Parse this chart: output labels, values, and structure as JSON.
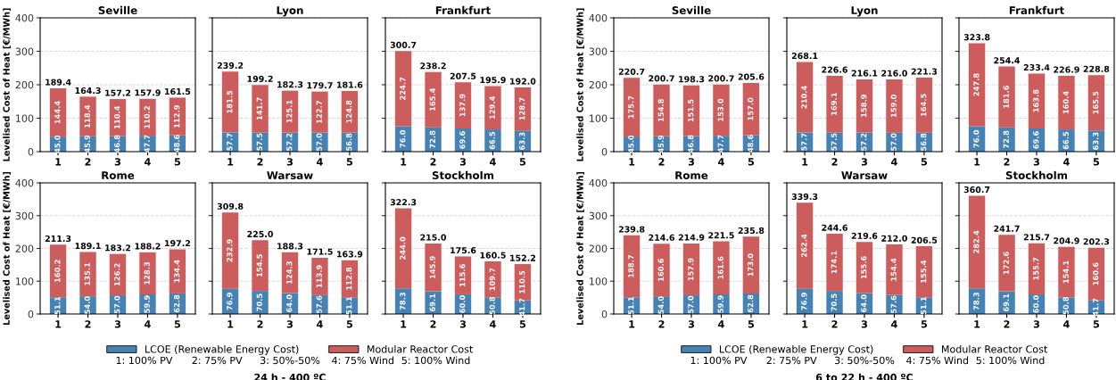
{
  "chart_data": [
    {
      "type": "bar",
      "title": "Seville",
      "ylabel": "Levelised Cost of Heat [€/MWh]",
      "categories": [
        "1",
        "2",
        "3",
        "4",
        "5"
      ],
      "stacked": true,
      "ylim": [
        0,
        400
      ],
      "yticks": [
        0,
        100,
        200,
        300,
        400
      ],
      "grid": "y",
      "series": [
        {
          "color": "#4682b4",
          "values": [
            45.0,
            45.9,
            46.8,
            47.7,
            48.6
          ],
          "value_labels": [
            "45.0",
            "45.9",
            "46.8",
            "47.7",
            "48.6"
          ]
        },
        {
          "color": "#cd5c5c",
          "values": [
            144.4,
            118.4,
            110.4,
            110.2,
            112.9
          ],
          "value_labels": [
            "144.4",
            "118.4",
            "110.4",
            "110.2",
            "112.9"
          ]
        }
      ],
      "totals": [
        "189.4",
        "164.3",
        "157.2",
        "157.9",
        "161.5"
      ]
    },
    {
      "type": "bar",
      "title": "Lyon",
      "categories": [
        "1",
        "2",
        "3",
        "4",
        "5"
      ],
      "stacked": true,
      "ylim": [
        0,
        400
      ],
      "yticks": [
        0,
        100,
        200,
        300,
        400
      ],
      "grid": "y",
      "tick_labels": "x",
      "series": [
        {
          "color": "#4682b4",
          "values": [
            57.7,
            57.5,
            57.2,
            57.0,
            56.8
          ],
          "value_labels": [
            "57.7",
            "57.5",
            "57.2",
            "57.0",
            "56.8"
          ]
        },
        {
          "color": "#cd5c5c",
          "values": [
            181.5,
            141.7,
            125.1,
            122.7,
            124.8
          ],
          "value_labels": [
            "181.5",
            "141.7",
            "125.1",
            "122.7",
            "124.8"
          ]
        }
      ],
      "totals": [
        "239.2",
        "199.2",
        "182.3",
        "179.7",
        "181.6"
      ]
    },
    {
      "type": "bar",
      "title": "Frankfurt",
      "categories": [
        "1",
        "2",
        "3",
        "4",
        "5"
      ],
      "stacked": true,
      "ylim": [
        0,
        400
      ],
      "yticks": [
        0,
        100,
        200,
        300,
        400
      ],
      "grid": "y",
      "tick_labels": "x",
      "series": [
        {
          "color": "#4682b4",
          "values": [
            76.0,
            72.8,
            69.6,
            66.5,
            63.3
          ],
          "value_labels": [
            "76.0",
            "72.8",
            "69.6",
            "66.5",
            "63.3"
          ]
        },
        {
          "color": "#cd5c5c",
          "values": [
            224.7,
            165.4,
            137.9,
            129.4,
            128.7
          ],
          "value_labels": [
            "224.7",
            "165.4",
            "137.9",
            "129.4",
            "128.7"
          ]
        }
      ],
      "totals": [
        "300.7",
        "238.2",
        "207.5",
        "195.9",
        "192.0"
      ]
    },
    {
      "type": "bar",
      "title": "Rome",
      "ylabel": "Levelised Cost of Heat [€/MWh]",
      "categories": [
        "1",
        "2",
        "3",
        "4",
        "5"
      ],
      "stacked": true,
      "ylim": [
        0,
        400
      ],
      "yticks": [
        0,
        100,
        200,
        300,
        400
      ],
      "grid": "y",
      "series": [
        {
          "color": "#4682b4",
          "values": [
            51.1,
            54.0,
            57.0,
            59.9,
            62.8
          ],
          "value_labels": [
            "51.1",
            "54.0",
            "57.0",
            "59.9",
            "62.8"
          ]
        },
        {
          "color": "#cd5c5c",
          "values": [
            160.2,
            135.1,
            126.2,
            128.3,
            134.4
          ],
          "value_labels": [
            "160.2",
            "135.1",
            "126.2",
            "128.3",
            "134.4"
          ]
        }
      ],
      "totals": [
        "211.3",
        "189.1",
        "183.2",
        "188.2",
        "197.2"
      ]
    },
    {
      "type": "bar",
      "title": "Warsaw",
      "categories": [
        "1",
        "2",
        "3",
        "4",
        "5"
      ],
      "stacked": true,
      "ylim": [
        0,
        400
      ],
      "yticks": [
        0,
        100,
        200,
        300,
        400
      ],
      "grid": "y",
      "tick_labels": "x",
      "legend": "bottom",
      "series": [
        {
          "name": "LCOE (Renewable Energy Cost)",
          "color": "#4682b4",
          "values": [
            76.9,
            70.5,
            64.0,
            57.6,
            51.1
          ],
          "value_labels": [
            "76.9",
            "70.5",
            "64.0",
            "57.6",
            "51.1"
          ]
        },
        {
          "name": "Modular Reactor Cost",
          "color": "#cd5c5c",
          "values": [
            232.9,
            154.5,
            124.3,
            113.9,
            112.8
          ],
          "value_labels": [
            "232.9",
            "154.5",
            "124.3",
            "113.9",
            "112.8"
          ]
        }
      ],
      "totals": [
        "309.8",
        "225.0",
        "188.3",
        "171.5",
        "163.9"
      ],
      "annotations": [
        "1: 100% PV",
        "2: 75% PV",
        "3: 50%-50%",
        "4: 75% Wind",
        "5: 100% Wind",
        "24 h - 400 ºC"
      ]
    },
    {
      "type": "bar",
      "title": "Stockholm",
      "categories": [
        "1",
        "2",
        "3",
        "4",
        "5"
      ],
      "stacked": true,
      "ylim": [
        0,
        400
      ],
      "yticks": [
        0,
        100,
        200,
        300,
        400
      ],
      "grid": "y",
      "tick_labels": "x",
      "series": [
        {
          "color": "#4682b4",
          "values": [
            78.3,
            69.1,
            60.0,
            50.8,
            41.7
          ],
          "value_labels": [
            "78.3",
            "69.1",
            "60.0",
            "50.8",
            "41.7"
          ]
        },
        {
          "color": "#cd5c5c",
          "values": [
            244.0,
            145.9,
            115.6,
            109.7,
            110.5
          ],
          "value_labels": [
            "244.0",
            "145.9",
            "115.6",
            "109.7",
            "110.5"
          ]
        }
      ],
      "totals": [
        "322.3",
        "215.0",
        "175.6",
        "160.5",
        "152.2"
      ]
    },
    {
      "type": "bar",
      "title": "Seville",
      "ylabel": "Levelised Cost of Heat [€/MWh]",
      "categories": [
        "1",
        "2",
        "3",
        "4",
        "5"
      ],
      "stacked": true,
      "ylim": [
        0,
        400
      ],
      "yticks": [
        0,
        100,
        200,
        300,
        400
      ],
      "grid": "y",
      "series": [
        {
          "color": "#4682b4",
          "values": [
            45.0,
            45.9,
            46.8,
            47.7,
            48.6
          ],
          "value_labels": [
            "45.0",
            "45.9",
            "46.8",
            "47.7",
            "48.6"
          ]
        },
        {
          "color": "#cd5c5c",
          "values": [
            175.7,
            154.8,
            151.5,
            153.0,
            157.0
          ],
          "value_labels": [
            "175.7",
            "154.8",
            "151.5",
            "153.0",
            "157.0"
          ]
        }
      ],
      "totals": [
        "220.7",
        "200.7",
        "198.3",
        "200.7",
        "205.6"
      ]
    },
    {
      "type": "bar",
      "title": "Lyon",
      "categories": [
        "1",
        "2",
        "3",
        "4",
        "5"
      ],
      "stacked": true,
      "ylim": [
        0,
        400
      ],
      "yticks": [
        0,
        100,
        200,
        300,
        400
      ],
      "grid": "y",
      "tick_labels": "x",
      "series": [
        {
          "color": "#4682b4",
          "values": [
            57.7,
            57.5,
            57.2,
            57.0,
            56.8
          ],
          "value_labels": [
            "57.7",
            "57.5",
            "57.2",
            "57.0",
            "56.8"
          ]
        },
        {
          "color": "#cd5c5c",
          "values": [
            210.4,
            169.1,
            158.9,
            159.0,
            164.5
          ],
          "value_labels": [
            "210.4",
            "169.1",
            "158.9",
            "159.0",
            "164.5"
          ]
        }
      ],
      "totals": [
        "268.1",
        "226.6",
        "216.1",
        "216.0",
        "221.3"
      ]
    },
    {
      "type": "bar",
      "title": "Frankfurt",
      "categories": [
        "1",
        "2",
        "3",
        "4",
        "5"
      ],
      "stacked": true,
      "ylim": [
        0,
        400
      ],
      "yticks": [
        0,
        100,
        200,
        300,
        400
      ],
      "grid": "y",
      "tick_labels": "x",
      "series": [
        {
          "color": "#4682b4",
          "values": [
            76.0,
            72.8,
            69.6,
            66.5,
            63.3
          ],
          "value_labels": [
            "76.0",
            "72.8",
            "69.6",
            "66.5",
            "63.3"
          ]
        },
        {
          "color": "#cd5c5c",
          "values": [
            247.8,
            181.6,
            163.8,
            160.4,
            165.5
          ],
          "value_labels": [
            "247.8",
            "181.6",
            "163.8",
            "160.4",
            "165.5"
          ]
        }
      ],
      "totals": [
        "323.8",
        "254.4",
        "233.4",
        "226.9",
        "228.8"
      ]
    },
    {
      "type": "bar",
      "title": "Rome",
      "ylabel": "Levelised Cost of Heat [€/MWh]",
      "categories": [
        "1",
        "2",
        "3",
        "4",
        "5"
      ],
      "stacked": true,
      "ylim": [
        0,
        400
      ],
      "yticks": [
        0,
        100,
        200,
        300,
        400
      ],
      "grid": "y",
      "series": [
        {
          "color": "#4682b4",
          "values": [
            51.1,
            54.0,
            57.0,
            59.9,
            62.8
          ],
          "value_labels": [
            "51.1",
            "54.0",
            "57.0",
            "59.9",
            "62.8"
          ]
        },
        {
          "color": "#cd5c5c",
          "values": [
            188.7,
            160.6,
            157.9,
            161.6,
            173.0
          ],
          "value_labels": [
            "188.7",
            "160.6",
            "157.9",
            "161.6",
            "173.0"
          ]
        }
      ],
      "totals": [
        "239.8",
        "214.6",
        "214.9",
        "221.5",
        "235.8"
      ]
    },
    {
      "type": "bar",
      "title": "Warsaw",
      "categories": [
        "1",
        "2",
        "3",
        "4",
        "5"
      ],
      "stacked": true,
      "ylim": [
        0,
        400
      ],
      "yticks": [
        0,
        100,
        200,
        300,
        400
      ],
      "grid": "y",
      "tick_labels": "x",
      "legend": "bottom",
      "series": [
        {
          "name": "LCOE (Renewable Energy Cost)",
          "color": "#4682b4",
          "values": [
            76.9,
            70.5,
            64.0,
            57.6,
            51.1
          ],
          "value_labels": [
            "76.9",
            "70.5",
            "64.0",
            "57.6",
            "51.1"
          ]
        },
        {
          "name": "Modular Reactor Cost",
          "color": "#cd5c5c",
          "values": [
            262.4,
            174.1,
            155.6,
            154.4,
            155.4
          ],
          "value_labels": [
            "262.4",
            "174.1",
            "155.6",
            "154.4",
            "155.4"
          ]
        }
      ],
      "totals": [
        "339.3",
        "244.6",
        "219.6",
        "212.0",
        "206.5"
      ],
      "annotations": [
        "1: 100% PV",
        "2: 75% PV",
        "3: 50%-50%",
        "4: 75% Wind",
        "5: 100% Wind",
        "6 to 22 h - 400 ºC"
      ]
    },
    {
      "type": "bar",
      "title": "Stockholm",
      "categories": [
        "1",
        "2",
        "3",
        "4",
        "5"
      ],
      "stacked": true,
      "ylim": [
        0,
        400
      ],
      "yticks": [
        0,
        100,
        200,
        300,
        400
      ],
      "grid": "y",
      "tick_labels": "x",
      "series": [
        {
          "color": "#4682b4",
          "values": [
            78.3,
            69.1,
            60.0,
            50.8,
            41.7
          ],
          "value_labels": [
            "78.3",
            "69.1",
            "60.0",
            "50.8",
            "41.7"
          ]
        },
        {
          "color": "#cd5c5c",
          "values": [
            282.4,
            172.6,
            155.7,
            154.1,
            160.6
          ],
          "value_labels": [
            "282.4",
            "172.6",
            "155.7",
            "154.1",
            "160.6"
          ]
        }
      ],
      "totals": [
        "360.7",
        "241.7",
        "215.7",
        "204.9",
        "202.3"
      ]
    }
  ]
}
